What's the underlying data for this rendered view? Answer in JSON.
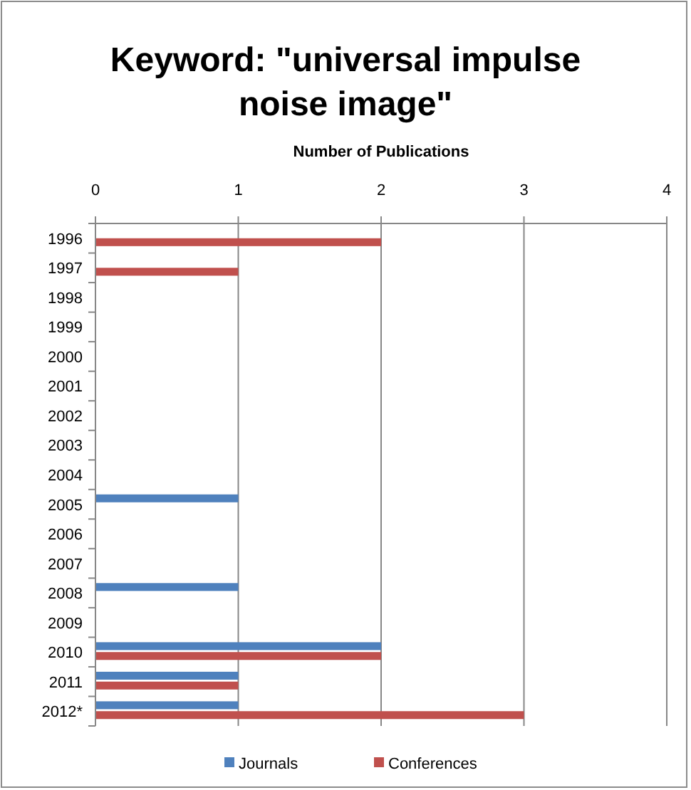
{
  "chart_data": {
    "type": "bar",
    "orientation": "horizontal",
    "title": "Keyword: \"universal impulse noise image\"",
    "xlabel": "Number of Publications",
    "categories": [
      "1996",
      "1997",
      "1998",
      "1999",
      "2000",
      "2001",
      "2002",
      "2003",
      "2004",
      "2005",
      "2006",
      "2007",
      "2008",
      "2009",
      "2010",
      "2011",
      "2012*"
    ],
    "series": [
      {
        "name": "Journals",
        "color": "#4f81bd",
        "values": [
          0,
          0,
          0,
          0,
          0,
          0,
          0,
          0,
          0,
          1,
          0,
          0,
          1,
          0,
          2,
          1,
          1
        ]
      },
      {
        "name": "Conferences",
        "color": "#c0504d",
        "values": [
          2,
          1,
          0,
          0,
          0,
          0,
          0,
          0,
          0,
          0,
          0,
          0,
          0,
          0,
          2,
          1,
          3
        ]
      }
    ],
    "xlim": [
      0,
      4
    ],
    "xticks": [
      0,
      1,
      2,
      3,
      4
    ],
    "grid": "x",
    "legend": "bottom"
  }
}
